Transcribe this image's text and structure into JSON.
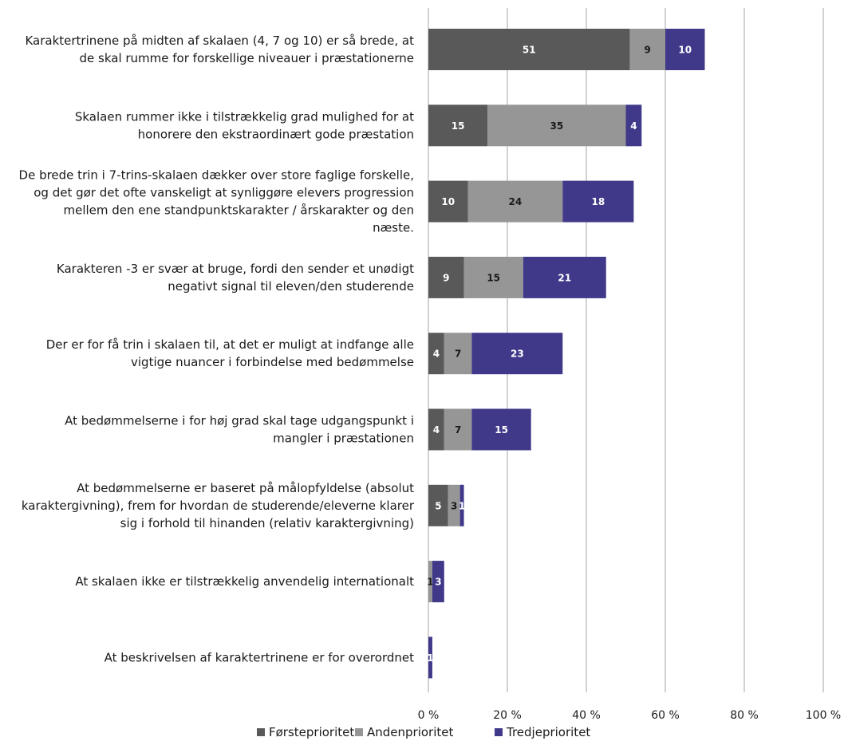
{
  "chart_data": {
    "type": "bar",
    "orientation": "horizontal",
    "stacked": true,
    "categories": [
      [
        "Karaktertrinene på midten af skalaen (4, 7 og 10) er så brede, at",
        "de skal rumme for forskellige niveauer i præstationerne"
      ],
      [
        "Skalaen rummer ikke i tilstrækkelig grad mulighed for at",
        "honorere den ekstraordinært gode præstation"
      ],
      [
        "De brede trin i 7-trins-skalaen dækker over store faglige forskelle,",
        "og det gør det ofte vanskeligt at synliggøre elevers progression",
        "mellem den ene standpunktskarakter / årskarakter og den",
        "næste."
      ],
      [
        "Karakteren -3 er svær at bruge, fordi den sender et unødigt",
        "negativt signal til eleven/den studerende"
      ],
      [
        "Der er for få trin i skalaen til, at det er muligt at indfange alle",
        "vigtige nuancer i forbindelse med bedømmelse"
      ],
      [
        "At bedømmelserne i for høj grad skal tage udgangspunkt i",
        "mangler i præstationen"
      ],
      [
        "At bedømmelserne er baseret på målopfyldelse (absolut",
        "karaktergivning), frem for hvordan de studerende/eleverne klarer",
        "sig i forhold til hinanden (relativ karaktergivning)"
      ],
      [
        "At skalaen ikke er tilstrækkelig anvendelig internationalt"
      ],
      [
        "At beskrivelsen af karaktertrinene er for overordnet"
      ]
    ],
    "series": [
      {
        "name": "Førsteprioritet",
        "color": "#595959",
        "label_color": "#ffffff",
        "values": [
          51,
          15,
          10,
          9,
          4,
          4,
          5,
          0,
          0
        ],
        "labels": [
          "51",
          "15",
          "10",
          "9",
          "4",
          "4",
          "5",
          "",
          ""
        ]
      },
      {
        "name": "Andenprioritet",
        "color": "#969696",
        "label_color": "#1a1a1a",
        "values": [
          9,
          35,
          24,
          15,
          7,
          7,
          3,
          1,
          0
        ],
        "labels": [
          "9",
          "35",
          "24",
          "15",
          "7",
          "7",
          "3",
          "1",
          ""
        ]
      },
      {
        "name": "Tredjeprioritet",
        "color": "#40398a",
        "label_color": "#ffffff",
        "values": [
          10,
          4,
          18,
          21,
          23,
          15,
          1,
          3,
          1
        ],
        "labels": [
          "10",
          "4",
          "18",
          "21",
          "23",
          "15",
          "1",
          "3",
          "1"
        ]
      }
    ],
    "xlim": [
      0,
      100
    ],
    "x_ticks": [
      "0 %",
      "20 %",
      "40 %",
      "60 %",
      "80 %",
      "100 %"
    ],
    "grid": true,
    "legend": "bottom"
  }
}
